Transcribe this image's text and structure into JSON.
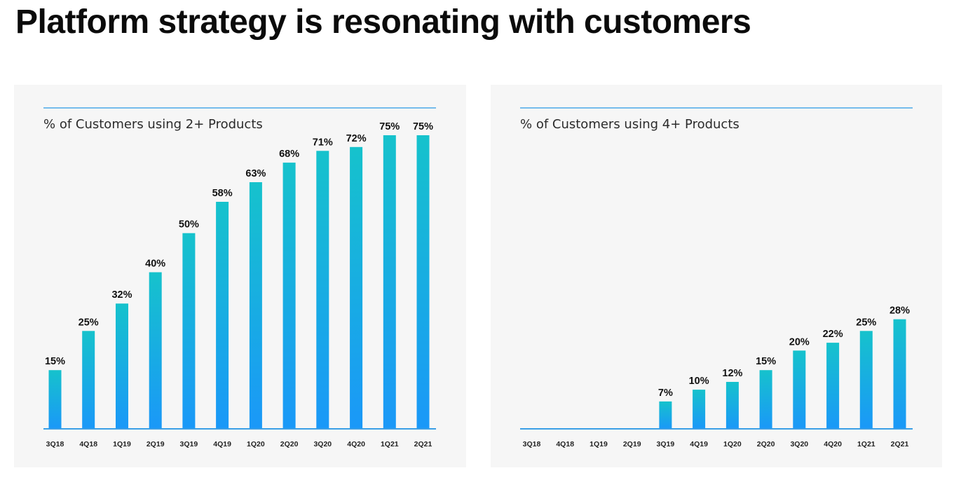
{
  "page": {
    "title": "Platform strategy is resonating with customers"
  },
  "colors": {
    "bar_top": "#16c2cc",
    "bar_bottom": "#1a98f8",
    "rule": "#4aa8e8",
    "axis": "#3a9fe6",
    "panel_bg": "#f6f6f6"
  },
  "chart_data": [
    {
      "type": "bar",
      "title": "% of Customers using 2+ Products",
      "categories": [
        "3Q18",
        "4Q18",
        "1Q19",
        "2Q19",
        "3Q19",
        "4Q19",
        "1Q20",
        "2Q20",
        "3Q20",
        "4Q20",
        "1Q21",
        "2Q21"
      ],
      "values": [
        15,
        25,
        32,
        40,
        50,
        58,
        63,
        68,
        71,
        72,
        75,
        75
      ],
      "value_labels": [
        "15%",
        "25%",
        "32%",
        "40%",
        "50%",
        "58%",
        "63%",
        "68%",
        "71%",
        "72%",
        "75%",
        "75%"
      ],
      "ylim": [
        0,
        75
      ],
      "grid": false,
      "legend": "none"
    },
    {
      "type": "bar",
      "title": "% of Customers using 4+ Products",
      "categories": [
        "3Q18",
        "4Q18",
        "1Q19",
        "2Q19",
        "3Q19",
        "4Q19",
        "1Q20",
        "2Q20",
        "3Q20",
        "4Q20",
        "1Q21",
        "2Q21"
      ],
      "values": [
        null,
        null,
        null,
        null,
        7,
        10,
        12,
        15,
        20,
        22,
        25,
        28
      ],
      "value_labels": [
        "",
        "",
        "",
        "",
        "7%",
        "10%",
        "12%",
        "15%",
        "20%",
        "22%",
        "25%",
        "28%"
      ],
      "ylim": [
        0,
        75
      ],
      "grid": false,
      "legend": "none"
    }
  ]
}
